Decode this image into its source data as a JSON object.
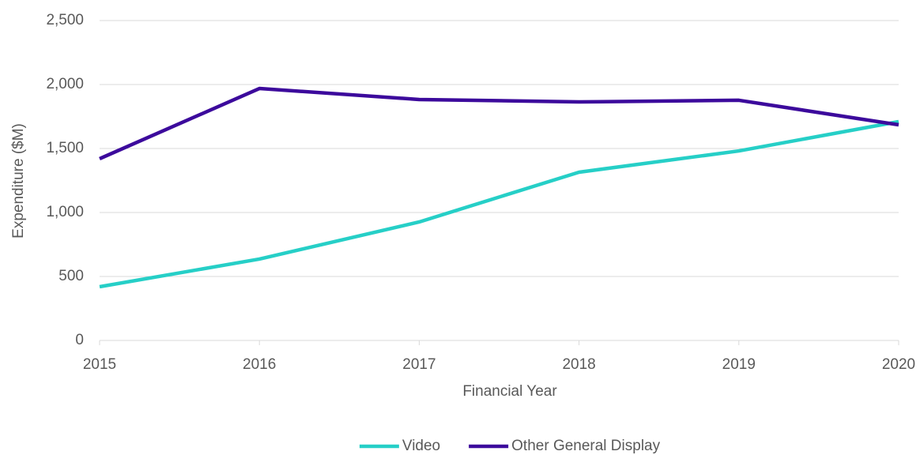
{
  "chart_data": {
    "type": "line",
    "x": [
      2015,
      2016,
      2017,
      2018,
      2019,
      2020
    ],
    "xlim": [
      2015,
      2020
    ],
    "xticks": [
      2015,
      2016,
      2017,
      2018,
      2019,
      2020
    ],
    "ylim": [
      0,
      2500
    ],
    "yticks": [
      0,
      500,
      {
        "value": 1000,
        "label": "1,000"
      },
      {
        "value": 1500,
        "label": "1,500"
      },
      {
        "value": 2000,
        "label": "2,000"
      },
      {
        "value": 2500,
        "label": "2,500"
      }
    ],
    "xlabel": "Financial Year",
    "ylabel": "Expenditure ($M)",
    "grid": true,
    "legend": "bottom",
    "series": [
      {
        "name": "Video",
        "color": "#26cfc7",
        "values": [
          420,
          636,
          926,
          1315,
          1481,
          1710
        ]
      },
      {
        "name": "Other General Display",
        "color": "#3c0a9c",
        "values": [
          1420,
          1969,
          1883,
          1864,
          1877,
          1685
        ]
      }
    ]
  }
}
